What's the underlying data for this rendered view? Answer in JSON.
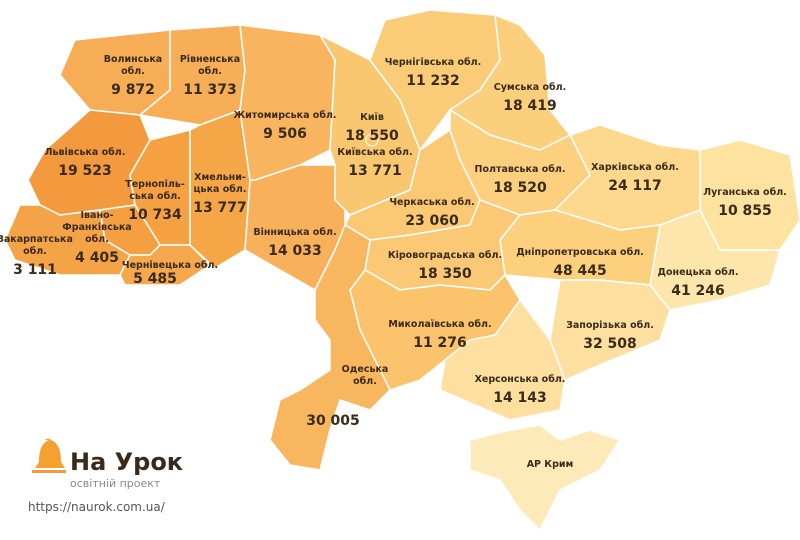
{
  "regions": [
    {
      "name": [
        "Волинська",
        "обл."
      ],
      "value": "9 872",
      "color": "#f7ad55"
    },
    {
      "name": [
        "Рівненська",
        "обл."
      ],
      "value": "11 373",
      "color": "#f7ae57"
    },
    {
      "name": [
        "Львівська обл."
      ],
      "value": "19 523",
      "color": "#f39a3e"
    },
    {
      "name": [
        "Закарпатська",
        "обл."
      ],
      "value": "3 111",
      "color": "#f5a347"
    },
    {
      "name": [
        "Тернопіль-",
        "ська обл."
      ],
      "value": "10 734",
      "color": "#f5a142"
    },
    {
      "name": [
        "Івано-",
        "Франківська",
        "обл."
      ],
      "value": "4 405",
      "color": "#f5a040"
    },
    {
      "name": [
        "Чернівецька обл."
      ],
      "value": "5 485",
      "color": "#f6a84c"
    },
    {
      "name": [
        "Хмельни-",
        "цька обл."
      ],
      "value": "13 777",
      "color": "#f5a646"
    },
    {
      "name": [
        "Житомирська обл."
      ],
      "value": "9 506",
      "color": "#f8b45e"
    },
    {
      "name": [
        "Вінницька обл."
      ],
      "value": "14 033",
      "color": "#f8b15a"
    },
    {
      "name": [
        "Київська обл."
      ],
      "value": "13 771",
      "color": "#fac771"
    },
    {
      "name": [
        "Чернігівська обл."
      ],
      "value": "11 232",
      "color": "#fbcc78"
    },
    {
      "name": [
        "Сумська обл."
      ],
      "value": "18 419",
      "color": "#fbcf7c"
    },
    {
      "name": [
        "Черкаська обл."
      ],
      "value": "23 060",
      "color": "#fbc873"
    },
    {
      "name": [
        "Полтавська обл."
      ],
      "value": "18 520",
      "color": "#fcd07f"
    },
    {
      "name": [
        "Харківська обл."
      ],
      "value": "24 117",
      "color": "#fdd88d"
    },
    {
      "name": [
        "Луганська обл."
      ],
      "value": "10 855",
      "color": "#fde2a0"
    },
    {
      "name": [
        "Донецька обл."
      ],
      "value": "41 246",
      "color": "#fde6ab"
    },
    {
      "name": [
        "Дніпропетровська обл."
      ],
      "value": "48 445",
      "color": "#fcd07d"
    },
    {
      "name": [
        "Кіровоградська обл."
      ],
      "value": "18 350",
      "color": "#fbc975"
    },
    {
      "name": [
        "Запорізька обл."
      ],
      "value": "32 508",
      "color": "#fde0a0"
    },
    {
      "name": [
        "Миколаївська обл."
      ],
      "value": "11 276",
      "color": "#fac36c"
    },
    {
      "name": [
        "Херсонська обл."
      ],
      "value": "14 143",
      "color": "#fde0a0"
    },
    {
      "name": [
        "Одеська",
        "обл."
      ],
      "value": "30 005",
      "color": "#f8b75f"
    },
    {
      "name": [
        "АР Крим"
      ],
      "color": "#fdeab8"
    },
    {
      "name": [
        "Київ"
      ],
      "value": "18 550",
      "color": "#fac771"
    }
  ],
  "logo": {
    "title": "На Урок",
    "subtitle": "освітній проект"
  },
  "url": "https://naurok.com.ua/"
}
